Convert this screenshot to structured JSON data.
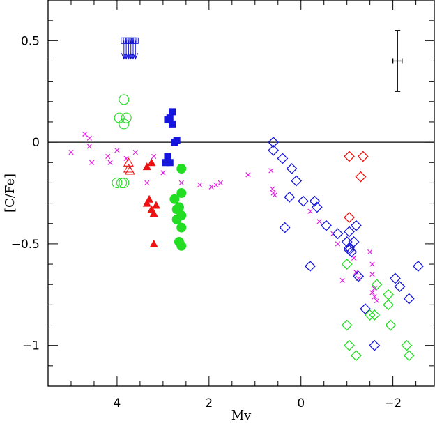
{
  "chart_data": {
    "type": "scatter",
    "title": "",
    "xlabel": "Mv",
    "ylabel": "[C/Fe]",
    "xlim": [
      5.5,
      -2.9
    ],
    "ylim": [
      -1.2,
      0.7
    ],
    "x_ticks": [
      {
        "value": 4,
        "label": "4"
      },
      {
        "value": 2,
        "label": "2"
      },
      {
        "value": 0,
        "label": "0"
      },
      {
        "value": -2,
        "label": "−2"
      }
    ],
    "y_ticks": [
      {
        "value": 0.5,
        "label": "0.5"
      },
      {
        "value": 0,
        "label": "0"
      },
      {
        "value": -0.5,
        "label": "−0.5"
      },
      {
        "value": -1,
        "label": "−1"
      }
    ],
    "grid": false,
    "reference_line": {
      "y": 0
    },
    "error_bar": {
      "x": -2.1,
      "y": 0.4,
      "dx": 0.1,
      "dy": 0.15
    },
    "colors": {
      "magenta": "#e020e0",
      "green": "#22dd22",
      "red": "#ee1111",
      "blue": "#1515dd"
    },
    "series": [
      {
        "marker": "cross",
        "color": "magenta",
        "points": [
          [
            5.0,
            -0.05
          ],
          [
            4.7,
            0.04
          ],
          [
            4.6,
            0.02
          ],
          [
            4.6,
            -0.02
          ],
          [
            4.55,
            -0.1
          ],
          [
            4.2,
            -0.07
          ],
          [
            4.15,
            -0.1
          ],
          [
            4.0,
            -0.04
          ],
          [
            3.8,
            -0.08
          ],
          [
            3.6,
            -0.05
          ],
          [
            3.35,
            -0.2
          ],
          [
            3.2,
            -0.07
          ],
          [
            3.0,
            -0.15
          ],
          [
            2.6,
            -0.2
          ],
          [
            2.2,
            -0.21
          ],
          [
            1.95,
            -0.22
          ],
          [
            1.85,
            -0.21
          ],
          [
            1.75,
            -0.2
          ],
          [
            1.15,
            -0.16
          ],
          [
            0.65,
            -0.14
          ],
          [
            0.62,
            -0.23
          ],
          [
            0.6,
            -0.25
          ],
          [
            0.57,
            -0.26
          ],
          [
            -0.2,
            -0.34
          ],
          [
            -0.4,
            -0.39
          ],
          [
            -0.7,
            -0.45
          ],
          [
            -0.8,
            -0.5
          ],
          [
            -0.9,
            -0.68
          ],
          [
            -1.15,
            -0.57
          ],
          [
            -1.2,
            -0.64
          ],
          [
            -1.25,
            -0.67
          ],
          [
            -1.5,
            -0.54
          ],
          [
            -1.55,
            -0.6
          ],
          [
            -1.55,
            -0.65
          ],
          [
            -1.6,
            -0.72
          ],
          [
            -1.55,
            -0.74
          ],
          [
            -1.6,
            -0.76
          ],
          [
            -1.65,
            -0.78
          ]
        ]
      },
      {
        "marker": "open-circle",
        "color": "green",
        "points": [
          [
            3.85,
            0.21
          ],
          [
            3.95,
            0.12
          ],
          [
            3.8,
            0.12
          ],
          [
            3.85,
            0.09
          ],
          [
            4.0,
            -0.2
          ],
          [
            3.9,
            -0.2
          ],
          [
            3.85,
            -0.2
          ]
        ]
      },
      {
        "marker": "open-triangle",
        "color": "red",
        "points": [
          [
            3.75,
            -0.1
          ],
          [
            3.75,
            -0.13
          ],
          [
            3.72,
            -0.14
          ]
        ]
      },
      {
        "marker": "filled-triangle",
        "color": "red",
        "points": [
          [
            3.35,
            -0.12
          ],
          [
            3.25,
            -0.1
          ],
          [
            3.35,
            -0.3
          ],
          [
            3.3,
            -0.28
          ],
          [
            3.25,
            -0.33
          ],
          [
            3.2,
            -0.35
          ],
          [
            3.15,
            -0.31
          ],
          [
            3.2,
            -0.5
          ]
        ]
      },
      {
        "marker": "filled-square",
        "color": "blue",
        "points": [
          [
            2.8,
            0.15
          ],
          [
            2.85,
            0.12
          ],
          [
            2.9,
            0.11
          ],
          [
            2.8,
            0.09
          ],
          [
            2.7,
            0.01
          ],
          [
            2.75,
            0.0
          ],
          [
            2.9,
            -0.07
          ],
          [
            2.85,
            -0.1
          ],
          [
            2.95,
            -0.1
          ]
        ]
      },
      {
        "marker": "filled-circle",
        "color": "green",
        "points": [
          [
            2.6,
            -0.13
          ],
          [
            2.6,
            -0.25
          ],
          [
            2.75,
            -0.28
          ],
          [
            2.7,
            -0.33
          ],
          [
            2.65,
            -0.32
          ],
          [
            2.6,
            -0.36
          ],
          [
            2.7,
            -0.38
          ],
          [
            2.6,
            -0.42
          ],
          [
            2.65,
            -0.49
          ],
          [
            2.6,
            -0.51
          ]
        ]
      },
      {
        "marker": "upper-limit",
        "color": "blue",
        "points": [
          [
            3.85,
            0.5
          ],
          [
            3.8,
            0.5
          ],
          [
            3.75,
            0.5
          ],
          [
            3.7,
            0.5
          ],
          [
            3.65,
            0.5
          ],
          [
            3.6,
            0.5
          ]
        ]
      },
      {
        "marker": "open-diamond",
        "color": "blue",
        "points": [
          [
            0.6,
            0.0
          ],
          [
            0.6,
            -0.04
          ],
          [
            0.4,
            -0.08
          ],
          [
            0.2,
            -0.13
          ],
          [
            0.1,
            -0.19
          ],
          [
            -0.05,
            -0.29
          ],
          [
            0.25,
            -0.27
          ],
          [
            -0.3,
            -0.29
          ],
          [
            -0.35,
            -0.32
          ],
          [
            0.35,
            -0.42
          ],
          [
            -0.55,
            -0.41
          ],
          [
            -0.8,
            -0.45
          ],
          [
            -1.0,
            -0.49
          ],
          [
            -1.05,
            -0.44
          ],
          [
            -1.05,
            -0.52
          ],
          [
            -1.05,
            -0.53
          ],
          [
            -1.1,
            -0.54
          ],
          [
            -1.15,
            -0.49
          ],
          [
            -1.2,
            -0.41
          ],
          [
            -0.2,
            -0.61
          ],
          [
            -1.25,
            -0.66
          ],
          [
            -2.05,
            -0.67
          ],
          [
            -2.15,
            -0.71
          ],
          [
            -2.55,
            -0.61
          ],
          [
            -2.35,
            -0.77
          ],
          [
            -1.4,
            -0.82
          ],
          [
            -1.6,
            -1.0
          ]
        ]
      },
      {
        "marker": "open-diamond",
        "color": "red",
        "points": [
          [
            -1.05,
            -0.07
          ],
          [
            -1.35,
            -0.07
          ],
          [
            -1.3,
            -0.17
          ],
          [
            -1.05,
            -0.37
          ]
        ]
      },
      {
        "marker": "open-diamond",
        "color": "green",
        "points": [
          [
            -1.0,
            -0.6
          ],
          [
            -1.65,
            -0.7
          ],
          [
            -1.9,
            -0.75
          ],
          [
            -1.9,
            -0.8
          ],
          [
            -1.6,
            -0.85
          ],
          [
            -1.5,
            -0.85
          ],
          [
            -1.0,
            -0.9
          ],
          [
            -1.95,
            -0.9
          ],
          [
            -1.05,
            -1.0
          ],
          [
            -2.3,
            -1.0
          ],
          [
            -1.2,
            -1.05
          ],
          [
            -2.35,
            -1.05
          ]
        ]
      }
    ]
  }
}
